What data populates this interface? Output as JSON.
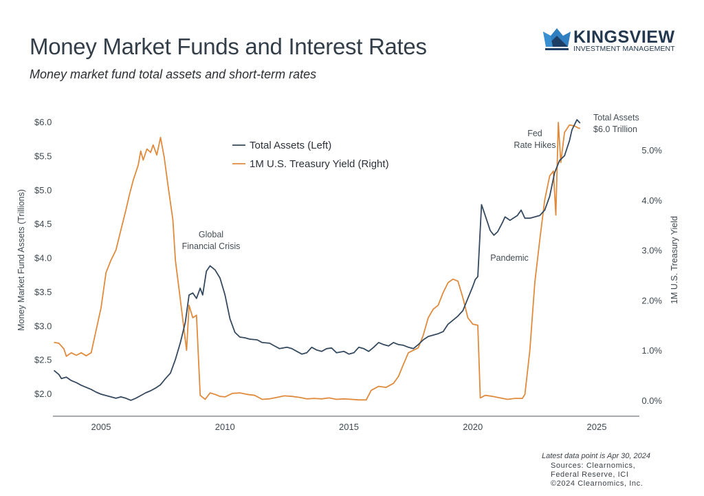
{
  "header": {
    "title": "Money Market Funds and Interest Rates",
    "subtitle": "Money market fund total assets and short-term rates"
  },
  "logo": {
    "name": "KINGSVIEW",
    "tagline": "INVESTMENT MANAGEMENT",
    "icon": "crown-icon",
    "colors": {
      "light": "#2f7fc1",
      "dark": "#1d3f66"
    }
  },
  "footer": {
    "latest": "Latest data point is Apr 30, 2024",
    "sources_line1": "Sources: Clearnomics,",
    "sources_line2": "Federal Reserve, ICI",
    "copyright": "©2024 Clearnomics, Inc."
  },
  "chart_data": {
    "type": "line",
    "title": "Money Market Funds and Interest Rates",
    "subtitle": "Money market fund total assets and short-term rates",
    "xlabel": "",
    "ylabel_left": "Money Market Fund Assets (Trillions)",
    "ylabel_right": "1M U.S. Treasury Yield",
    "xlim": [
      2003.1,
      2026.8
    ],
    "ylim_left": [
      1.9,
      6.1
    ],
    "ylim_right": [
      -0.15,
      5.5
    ],
    "x_ticks": [
      "2005",
      "2010",
      "2015",
      "2020",
      "2025"
    ],
    "y_ticks_left": [
      "$2.0",
      "$2.5",
      "$3.0",
      "$3.5",
      "$4.0",
      "$4.5",
      "$5.0",
      "$5.5",
      "$6.0"
    ],
    "y_ticks_right": [
      "0.0%",
      "1.0%",
      "2.0%",
      "3.0%",
      "4.0%",
      "5.0%"
    ],
    "grid": false,
    "legend": {
      "position": "top-center"
    },
    "colors": {
      "assets": "#34495e",
      "yield": "#e08a3c",
      "axis": "#8a8f94"
    },
    "series": [
      {
        "name": "Total Assets (Left)",
        "axis": "left",
        "points": [
          [
            2003.1,
            2.34
          ],
          [
            2003.3,
            2.28
          ],
          [
            2003.4,
            2.22
          ],
          [
            2003.6,
            2.24
          ],
          [
            2003.8,
            2.19
          ],
          [
            2004.0,
            2.16
          ],
          [
            2004.2,
            2.12
          ],
          [
            2004.4,
            2.09
          ],
          [
            2004.6,
            2.06
          ],
          [
            2004.8,
            2.02
          ],
          [
            2005.0,
            1.99
          ],
          [
            2005.2,
            1.97
          ],
          [
            2005.4,
            1.95
          ],
          [
            2005.6,
            1.93
          ],
          [
            2005.8,
            1.95
          ],
          [
            2006.0,
            1.93
          ],
          [
            2006.2,
            1.9
          ],
          [
            2006.4,
            1.93
          ],
          [
            2006.6,
            1.97
          ],
          [
            2006.8,
            2.01
          ],
          [
            2007.0,
            2.04
          ],
          [
            2007.2,
            2.08
          ],
          [
            2007.4,
            2.13
          ],
          [
            2007.6,
            2.22
          ],
          [
            2007.8,
            2.3
          ],
          [
            2008.0,
            2.5
          ],
          [
            2008.2,
            2.75
          ],
          [
            2008.4,
            3.05
          ],
          [
            2008.55,
            3.45
          ],
          [
            2008.7,
            3.48
          ],
          [
            2008.85,
            3.4
          ],
          [
            2009.0,
            3.55
          ],
          [
            2009.1,
            3.45
          ],
          [
            2009.25,
            3.8
          ],
          [
            2009.4,
            3.88
          ],
          [
            2009.6,
            3.82
          ],
          [
            2009.8,
            3.7
          ],
          [
            2010.0,
            3.45
          ],
          [
            2010.2,
            3.1
          ],
          [
            2010.4,
            2.9
          ],
          [
            2010.6,
            2.83
          ],
          [
            2010.8,
            2.82
          ],
          [
            2011.0,
            2.8
          ],
          [
            2011.3,
            2.79
          ],
          [
            2011.5,
            2.75
          ],
          [
            2011.8,
            2.74
          ],
          [
            2012.0,
            2.7
          ],
          [
            2012.2,
            2.66
          ],
          [
            2012.5,
            2.68
          ],
          [
            2012.7,
            2.66
          ],
          [
            2012.9,
            2.62
          ],
          [
            2013.1,
            2.58
          ],
          [
            2013.3,
            2.6
          ],
          [
            2013.5,
            2.68
          ],
          [
            2013.7,
            2.64
          ],
          [
            2013.9,
            2.62
          ],
          [
            2014.1,
            2.66
          ],
          [
            2014.3,
            2.67
          ],
          [
            2014.5,
            2.6
          ],
          [
            2014.8,
            2.62
          ],
          [
            2015.0,
            2.58
          ],
          [
            2015.2,
            2.6
          ],
          [
            2015.4,
            2.68
          ],
          [
            2015.6,
            2.66
          ],
          [
            2015.8,
            2.62
          ],
          [
            2016.0,
            2.68
          ],
          [
            2016.2,
            2.75
          ],
          [
            2016.4,
            2.72
          ],
          [
            2016.6,
            2.7
          ],
          [
            2016.8,
            2.75
          ],
          [
            2017.0,
            2.72
          ],
          [
            2017.2,
            2.71
          ],
          [
            2017.4,
            2.68
          ],
          [
            2017.6,
            2.66
          ],
          [
            2017.8,
            2.72
          ],
          [
            2018.0,
            2.79
          ],
          [
            2018.2,
            2.84
          ],
          [
            2018.4,
            2.86
          ],
          [
            2018.6,
            2.88
          ],
          [
            2018.8,
            2.91
          ],
          [
            2019.0,
            3.02
          ],
          [
            2019.2,
            3.08
          ],
          [
            2019.4,
            3.14
          ],
          [
            2019.6,
            3.22
          ],
          [
            2019.8,
            3.4
          ],
          [
            2020.0,
            3.58
          ],
          [
            2020.1,
            3.68
          ],
          [
            2020.2,
            3.72
          ],
          [
            2020.35,
            4.78
          ],
          [
            2020.5,
            4.62
          ],
          [
            2020.7,
            4.4
          ],
          [
            2020.85,
            4.33
          ],
          [
            2021.0,
            4.38
          ],
          [
            2021.2,
            4.52
          ],
          [
            2021.3,
            4.6
          ],
          [
            2021.5,
            4.55
          ],
          [
            2021.8,
            4.62
          ],
          [
            2021.95,
            4.7
          ],
          [
            2022.1,
            4.58
          ],
          [
            2022.3,
            4.58
          ],
          [
            2022.5,
            4.6
          ],
          [
            2022.7,
            4.62
          ],
          [
            2022.9,
            4.7
          ],
          [
            2023.1,
            4.9
          ],
          [
            2023.3,
            5.25
          ],
          [
            2023.5,
            5.43
          ],
          [
            2023.7,
            5.5
          ],
          [
            2023.9,
            5.72
          ],
          [
            2024.0,
            5.88
          ],
          [
            2024.2,
            6.03
          ],
          [
            2024.33,
            5.98
          ]
        ]
      },
      {
        "name": "1M U.S. Treasury Yield (Right)",
        "axis": "right",
        "points": [
          [
            2003.1,
            1.16
          ],
          [
            2003.3,
            1.14
          ],
          [
            2003.5,
            1.03
          ],
          [
            2003.6,
            0.88
          ],
          [
            2003.8,
            0.95
          ],
          [
            2004.0,
            0.9
          ],
          [
            2004.2,
            0.95
          ],
          [
            2004.4,
            0.89
          ],
          [
            2004.6,
            0.95
          ],
          [
            2004.8,
            1.4
          ],
          [
            2005.0,
            1.85
          ],
          [
            2005.2,
            2.55
          ],
          [
            2005.4,
            2.8
          ],
          [
            2005.6,
            3.0
          ],
          [
            2005.8,
            3.4
          ],
          [
            2006.0,
            3.8
          ],
          [
            2006.15,
            4.12
          ],
          [
            2006.3,
            4.4
          ],
          [
            2006.5,
            4.7
          ],
          [
            2006.6,
            4.98
          ],
          [
            2006.7,
            4.8
          ],
          [
            2006.85,
            5.02
          ],
          [
            2007.0,
            4.95
          ],
          [
            2007.1,
            5.1
          ],
          [
            2007.25,
            4.9
          ],
          [
            2007.4,
            5.25
          ],
          [
            2007.55,
            4.85
          ],
          [
            2007.7,
            4.3
          ],
          [
            2007.9,
            3.6
          ],
          [
            2008.0,
            2.8
          ],
          [
            2008.15,
            2.2
          ],
          [
            2008.3,
            1.6
          ],
          [
            2008.45,
            1.0
          ],
          [
            2008.55,
            1.9
          ],
          [
            2008.7,
            1.65
          ],
          [
            2008.85,
            1.7
          ],
          [
            2009.0,
            0.1
          ],
          [
            2009.2,
            0.02
          ],
          [
            2009.4,
            0.15
          ],
          [
            2009.6,
            0.12
          ],
          [
            2009.8,
            0.08
          ],
          [
            2010.0,
            0.07
          ],
          [
            2010.3,
            0.14
          ],
          [
            2010.6,
            0.15
          ],
          [
            2010.9,
            0.12
          ],
          [
            2011.2,
            0.1
          ],
          [
            2011.5,
            0.02
          ],
          [
            2011.8,
            0.03
          ],
          [
            2012.1,
            0.06
          ],
          [
            2012.4,
            0.09
          ],
          [
            2012.7,
            0.08
          ],
          [
            2013.0,
            0.06
          ],
          [
            2013.3,
            0.03
          ],
          [
            2013.6,
            0.04
          ],
          [
            2013.9,
            0.03
          ],
          [
            2014.2,
            0.05
          ],
          [
            2014.5,
            0.02
          ],
          [
            2014.8,
            0.03
          ],
          [
            2015.1,
            0.02
          ],
          [
            2015.4,
            0.01
          ],
          [
            2015.7,
            0.01
          ],
          [
            2015.9,
            0.2
          ],
          [
            2016.2,
            0.28
          ],
          [
            2016.5,
            0.26
          ],
          [
            2016.8,
            0.34
          ],
          [
            2017.0,
            0.48
          ],
          [
            2017.2,
            0.72
          ],
          [
            2017.4,
            0.95
          ],
          [
            2017.6,
            1.0
          ],
          [
            2017.8,
            1.05
          ],
          [
            2018.0,
            1.3
          ],
          [
            2018.2,
            1.65
          ],
          [
            2018.4,
            1.82
          ],
          [
            2018.6,
            1.9
          ],
          [
            2018.8,
            2.15
          ],
          [
            2019.0,
            2.35
          ],
          [
            2019.2,
            2.42
          ],
          [
            2019.4,
            2.38
          ],
          [
            2019.6,
            2.05
          ],
          [
            2019.8,
            1.65
          ],
          [
            2020.0,
            1.52
          ],
          [
            2020.2,
            1.5
          ],
          [
            2020.3,
            0.05
          ],
          [
            2020.5,
            0.1
          ],
          [
            2020.8,
            0.08
          ],
          [
            2021.1,
            0.05
          ],
          [
            2021.4,
            0.02
          ],
          [
            2021.7,
            0.04
          ],
          [
            2022.0,
            0.04
          ],
          [
            2022.1,
            0.12
          ],
          [
            2022.3,
            1.0
          ],
          [
            2022.5,
            2.35
          ],
          [
            2022.7,
            3.2
          ],
          [
            2022.9,
            4.0
          ],
          [
            2023.1,
            4.48
          ],
          [
            2023.25,
            4.58
          ],
          [
            2023.35,
            3.7
          ],
          [
            2023.45,
            5.55
          ],
          [
            2023.55,
            4.75
          ],
          [
            2023.7,
            5.35
          ],
          [
            2023.9,
            5.5
          ],
          [
            2024.1,
            5.48
          ],
          [
            2024.25,
            5.44
          ],
          [
            2024.33,
            5.43
          ]
        ]
      }
    ],
    "annotations": [
      {
        "id": "gfc",
        "lines": [
          "Global",
          "Financial Crisis"
        ]
      },
      {
        "id": "pandemic",
        "lines": [
          "Pandemic"
        ]
      },
      {
        "id": "fed",
        "lines": [
          "Fed",
          "Rate Hikes"
        ]
      },
      {
        "id": "total",
        "lines": [
          "Total Assets",
          "$6.0 Trillion"
        ]
      }
    ]
  }
}
